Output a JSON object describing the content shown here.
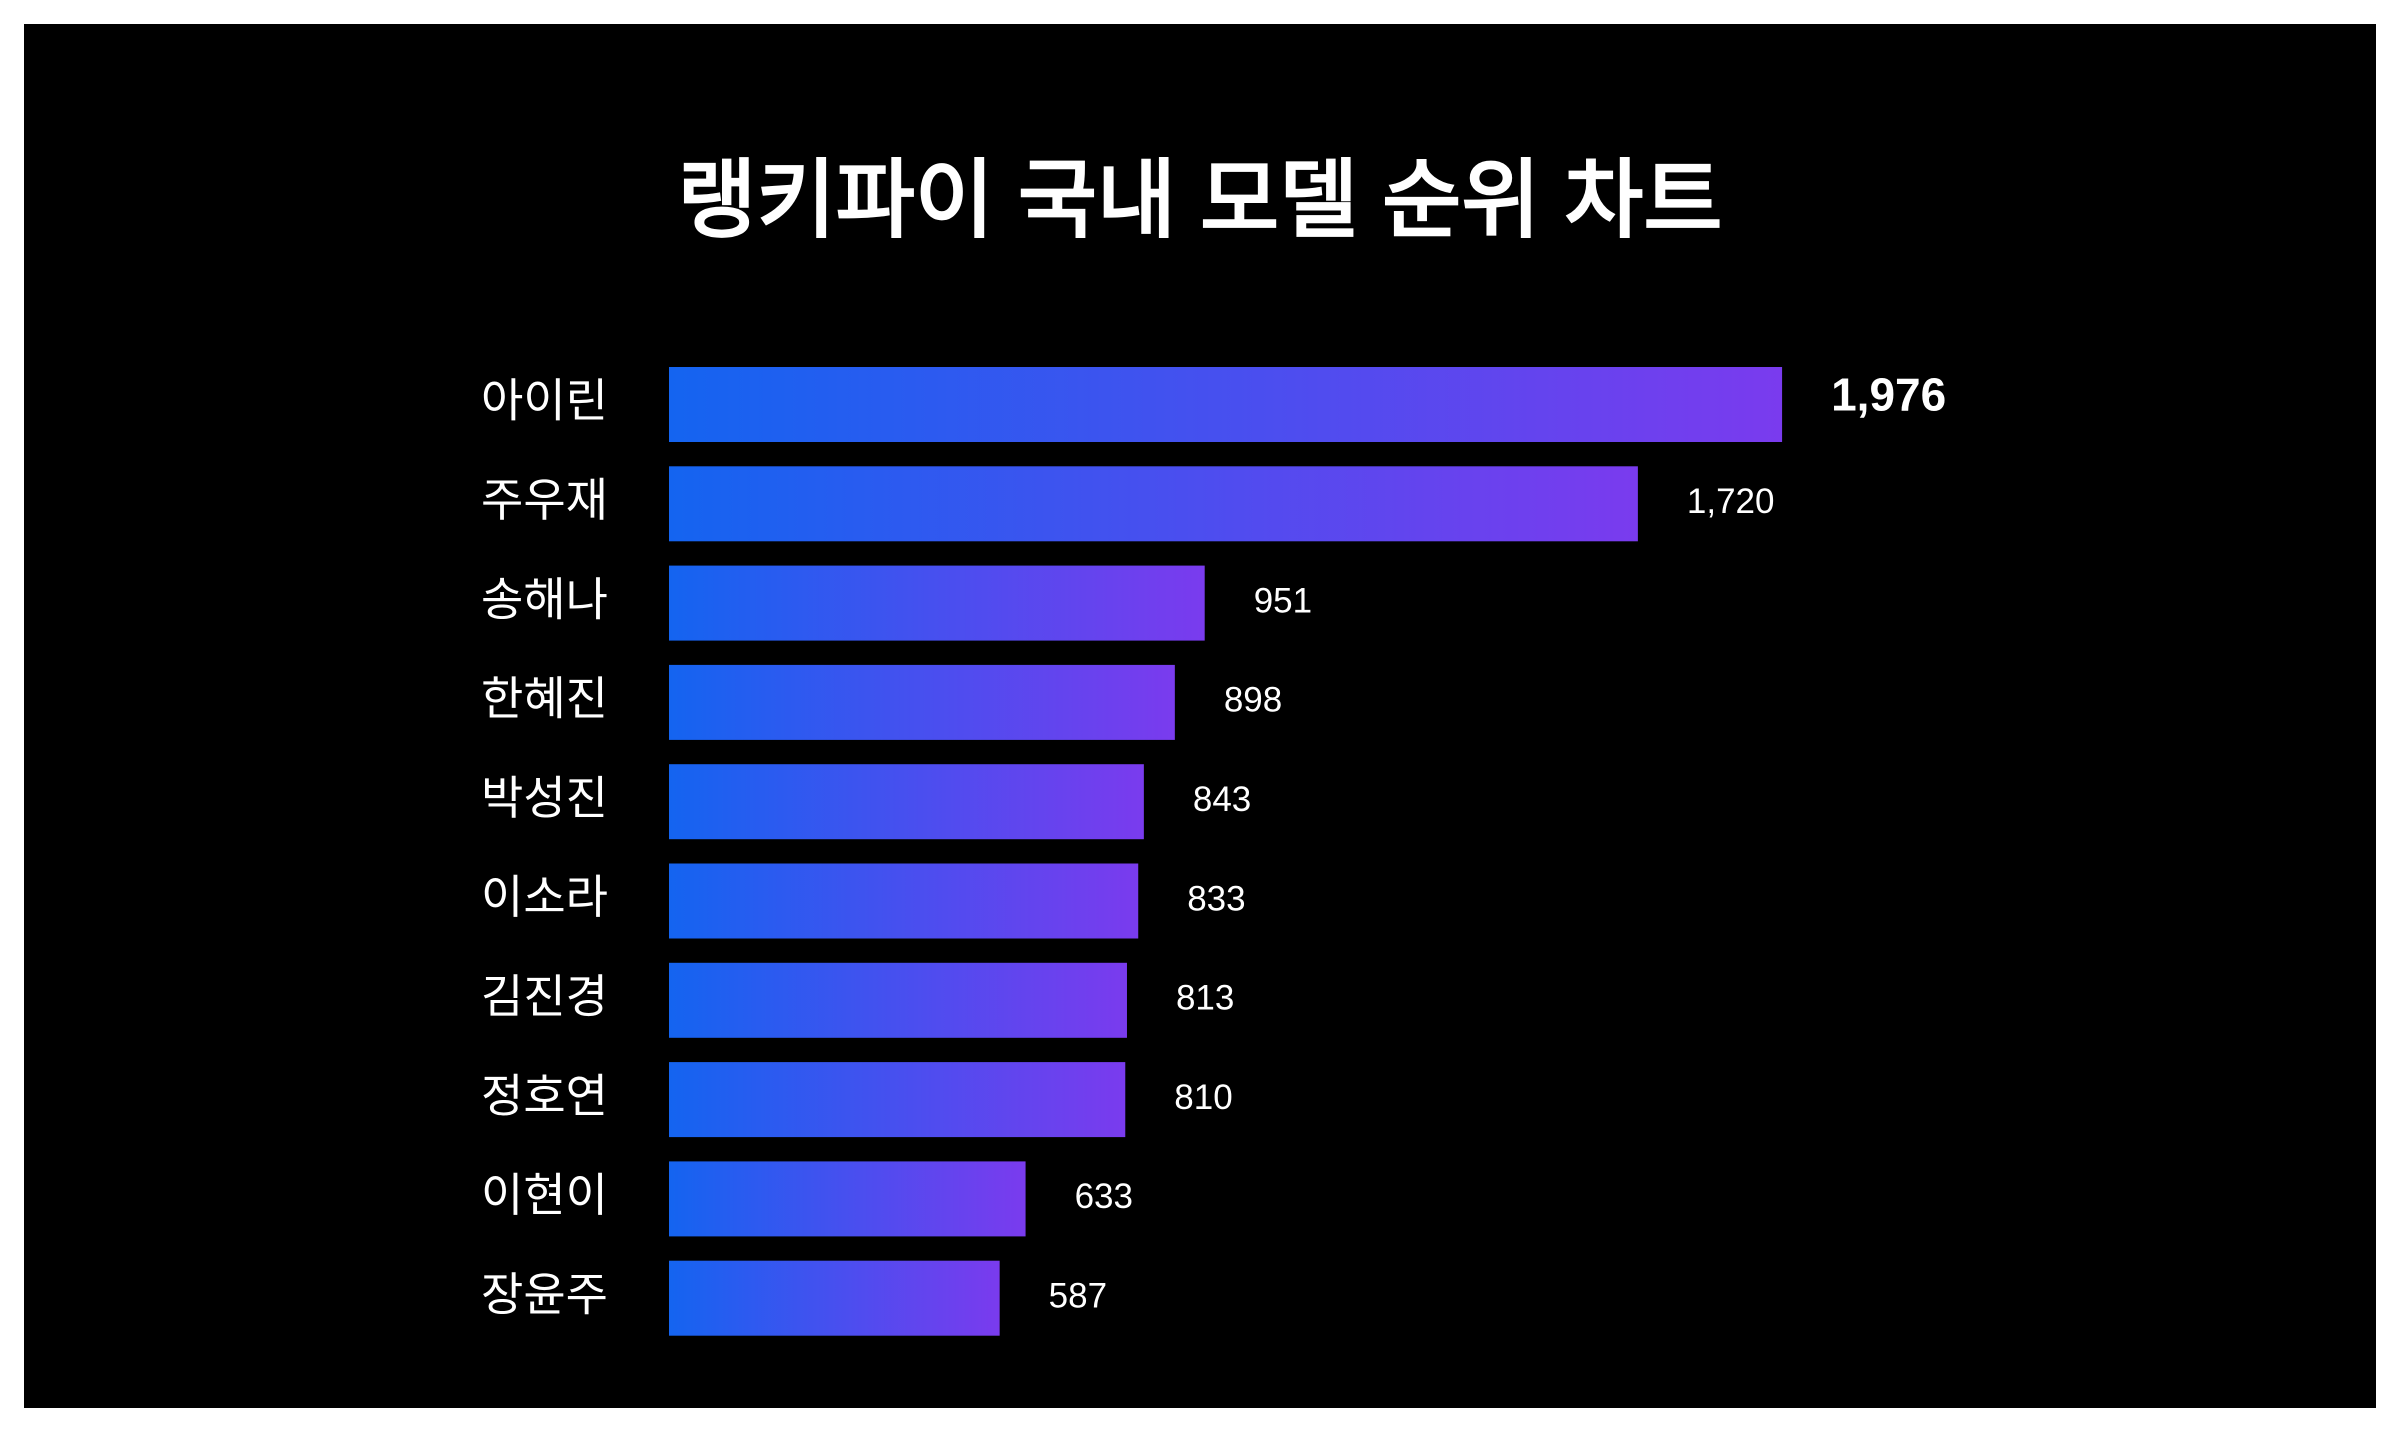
{
  "chart_data": {
    "type": "hbar",
    "title": "랭키파이 국내 모델 순위 차트",
    "categories": [
      "아이린",
      "주우재",
      "송해나",
      "한혜진",
      "박성진",
      "이소라",
      "김진경",
      "정호연",
      "이현이",
      "장윤주"
    ],
    "values": [
      1976,
      1720,
      951,
      898,
      843,
      833,
      813,
      810,
      633,
      587
    ],
    "value_labels": [
      "1,976",
      "1,720",
      "951",
      "898",
      "843",
      "833",
      "813",
      "810",
      "633",
      "587"
    ],
    "gradient": [
      "#1464f0",
      "#7a3bee"
    ]
  }
}
